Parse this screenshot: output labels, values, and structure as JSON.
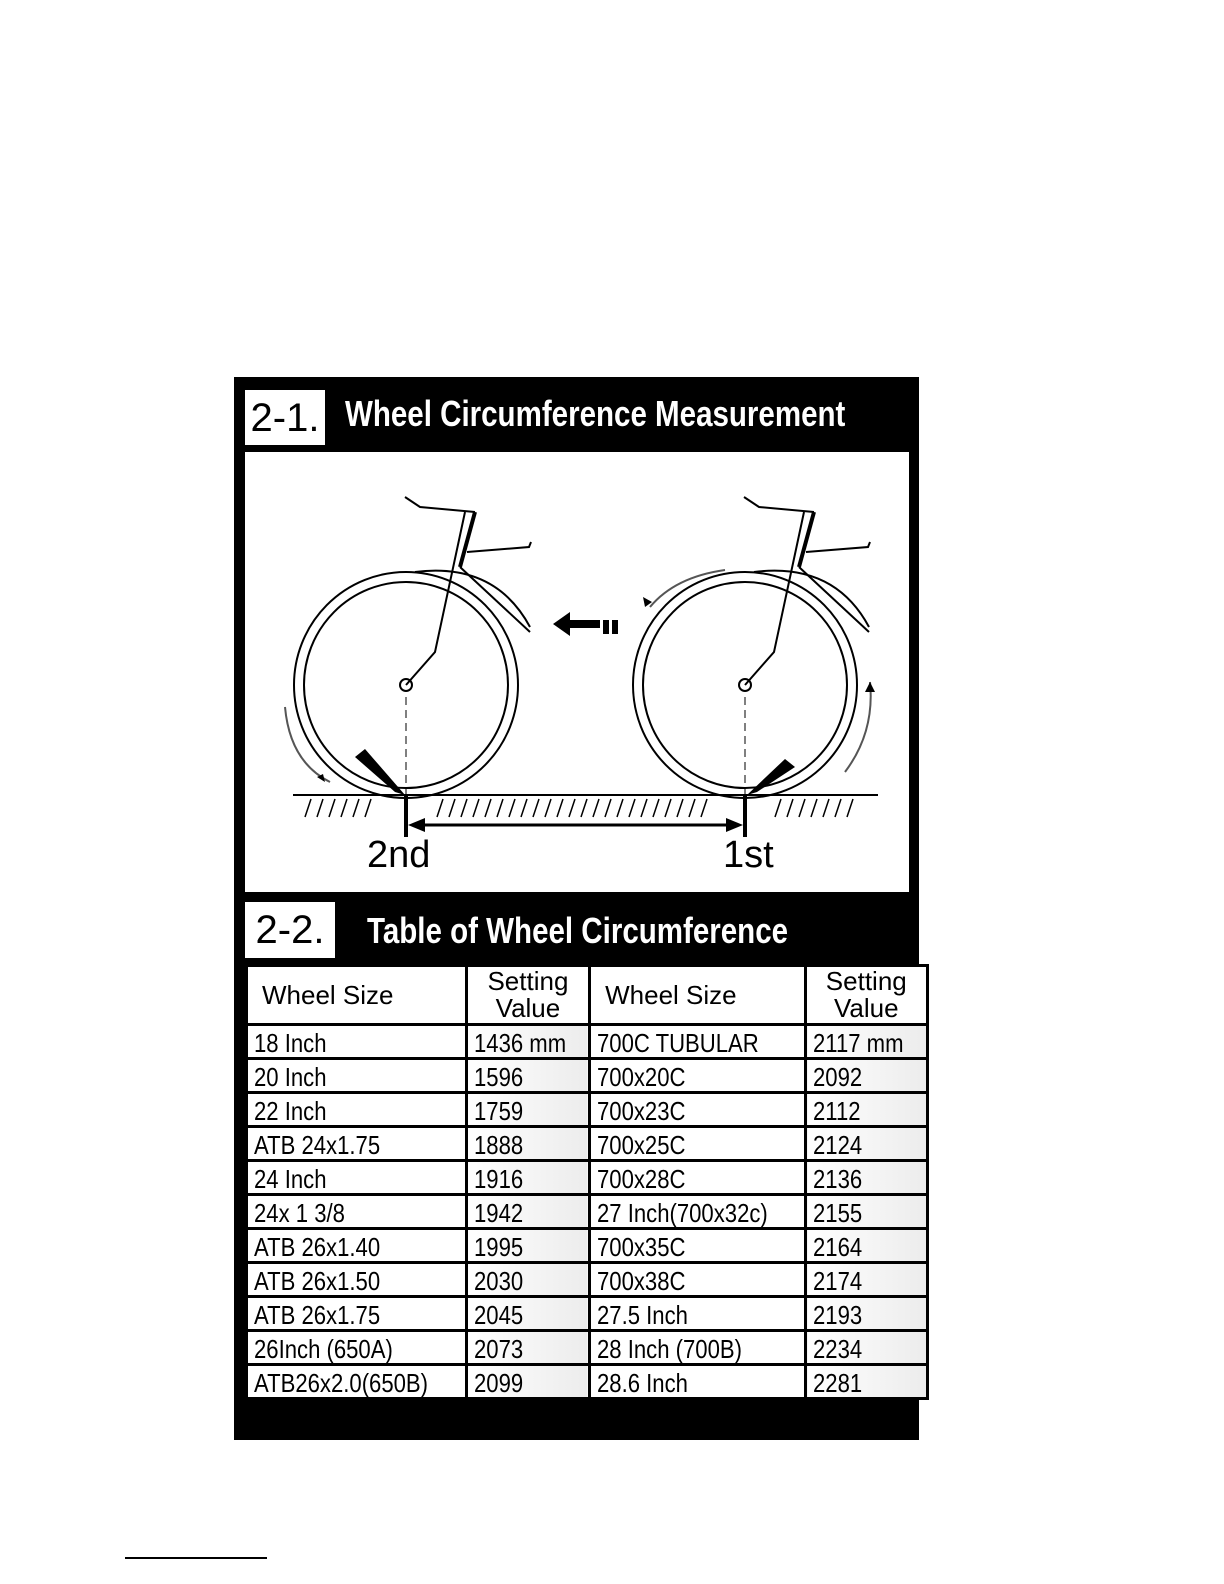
{
  "section1": {
    "number": "2-1.",
    "title": "Wheel Circumference Measurement"
  },
  "illustration": {
    "label_second": "2nd",
    "label_first": "1st"
  },
  "section2": {
    "number": "2-2.",
    "title": "Table of  Wheel Circumference"
  },
  "table": {
    "headers": [
      "Wheel Size",
      "Setting Value",
      "Wheel Size",
      "Setting Value"
    ],
    "rows": [
      [
        "18 Inch",
        "1436 mm",
        "700C TUBULAR",
        "2117 mm"
      ],
      [
        "20 Inch",
        "1596",
        "700x20C",
        "2092"
      ],
      [
        "22 Inch",
        "1759",
        "700x23C",
        "2112"
      ],
      [
        "ATB 24x1.75",
        "1888",
        "700x25C",
        "2124"
      ],
      [
        "24 Inch",
        "1916",
        "700x28C",
        "2136"
      ],
      [
        "24x 1 3/8",
        "1942",
        "27 Inch(700x32c)",
        "2155"
      ],
      [
        "ATB 26x1.40",
        "1995",
        "700x35C",
        "2164"
      ],
      [
        "ATB 26x1.50",
        "2030",
        "700x38C",
        "2174"
      ],
      [
        "ATB 26x1.75",
        "2045",
        "27.5 Inch",
        "2193"
      ],
      [
        "26Inch (650A)",
        "2073",
        "28 Inch (700B)",
        "2234"
      ],
      [
        "ATB26x2.0(650B)",
        "2099",
        "28.6 Inch",
        "2281"
      ]
    ]
  }
}
